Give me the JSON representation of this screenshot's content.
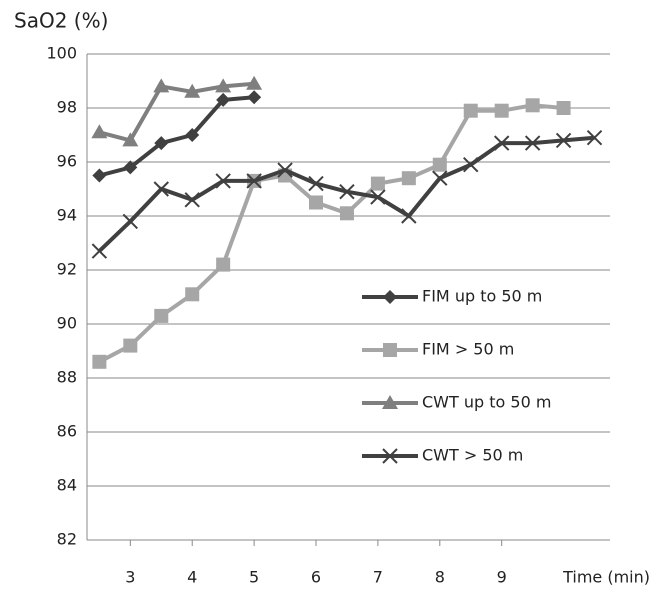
{
  "chart_data": {
    "type": "line",
    "y_label": "SaO2 (%)",
    "x_label": "Time (min)",
    "xlim": [
      2.3,
      10.75
    ],
    "xticks": [
      3,
      4,
      5,
      6,
      7,
      8,
      9
    ],
    "ylim": [
      82,
      100
    ],
    "yticks": [
      82,
      84,
      86,
      88,
      90,
      92,
      94,
      96,
      98,
      100
    ],
    "grid": true,
    "legend": "right",
    "series": [
      {
        "name": "FIM up to 50 m",
        "color": "#404040",
        "marker": "diamond",
        "x": [
          2.5,
          3,
          3.5,
          4,
          4.5,
          5
        ],
        "values": [
          95.5,
          95.8,
          96.7,
          97.0,
          98.3,
          98.4
        ]
      },
      {
        "name": "FIM > 50 m",
        "color": "#a6a6a6",
        "marker": "square",
        "x": [
          2.5,
          3,
          3.5,
          4,
          4.5,
          5,
          5.5,
          6,
          6.5,
          7,
          7.5,
          8,
          8.5,
          9,
          9.5,
          10
        ],
        "values": [
          88.6,
          89.2,
          90.3,
          91.1,
          92.2,
          95.3,
          95.5,
          94.5,
          94.1,
          95.2,
          95.4,
          95.9,
          97.9,
          97.9,
          98.1,
          98.0
        ]
      },
      {
        "name": "CWT up to 50 m",
        "color": "#7f7f7f",
        "marker": "triangle",
        "x": [
          2.5,
          3,
          3.5,
          4,
          4.5,
          5
        ],
        "values": [
          97.1,
          96.8,
          98.8,
          98.6,
          98.8,
          98.9
        ]
      },
      {
        "name": "CWT > 50 m",
        "color": "#404040",
        "marker": "x",
        "x": [
          2.5,
          3,
          3.5,
          4,
          4.5,
          5,
          5.5,
          6,
          6.5,
          7,
          7.5,
          8,
          8.5,
          9,
          9.5,
          10,
          10.5
        ],
        "values": [
          92.7,
          93.8,
          95.0,
          94.6,
          95.3,
          95.3,
          95.7,
          95.2,
          94.9,
          94.7,
          94.0,
          95.4,
          95.9,
          96.7,
          96.7,
          96.8,
          96.9
        ]
      }
    ]
  }
}
